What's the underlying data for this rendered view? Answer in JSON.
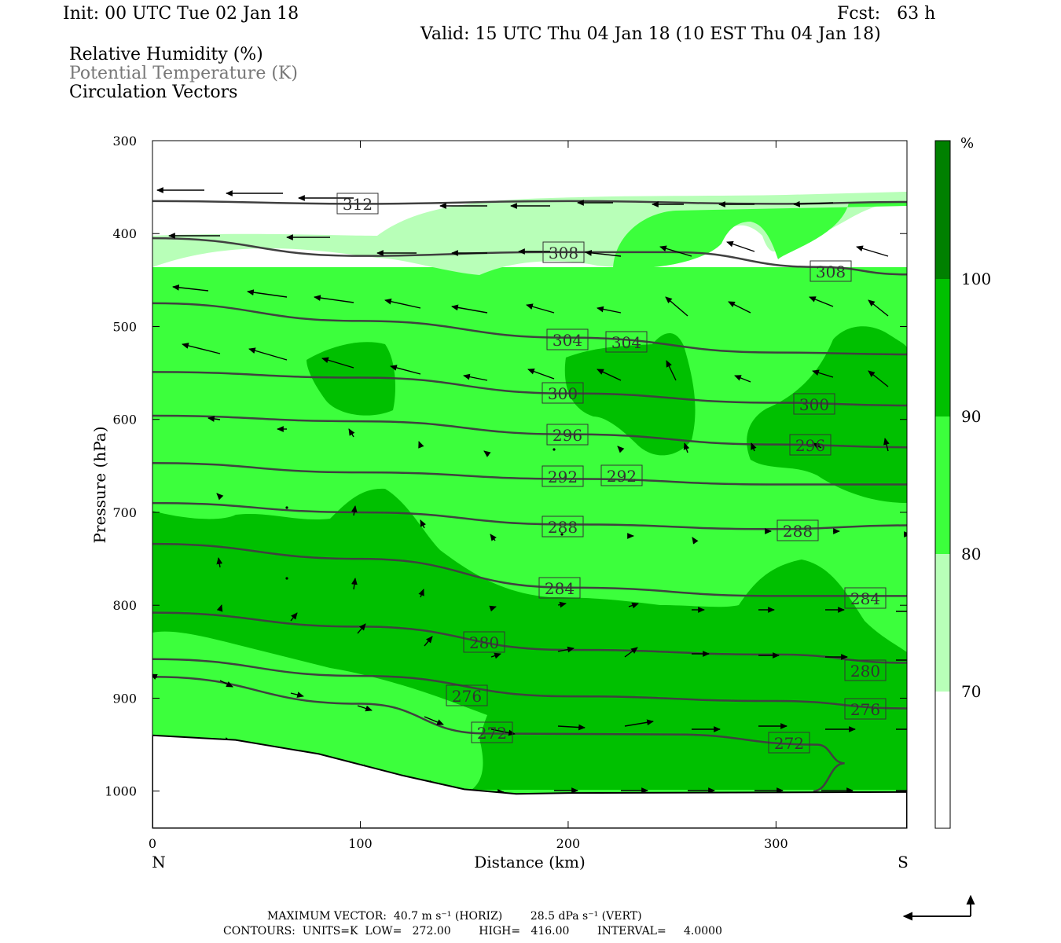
{
  "header": {
    "init": "Init: 00 UTC Tue 02 Jan 18",
    "fcst": "Fcst:   63 h",
    "valid": "Valid: 15 UTC Thu 04 Jan 18 (10 EST Thu 04 Jan 18)"
  },
  "legend": {
    "items": [
      "Relative Humidity (%)",
      "Potential Temperature (K)",
      "Circulation Vectors"
    ]
  },
  "footer": {
    "max_vector": "MAXIMUM VECTOR:  40.7 m s⁻¹ (HORIZ)        28.5 dPa s⁻¹ (VERT)",
    "contours": "CONTOURS:  UNITS=K  LOW=   272.00        HIGH=   416.00        INTERVAL=     4.0000"
  },
  "colors": {
    "rh_70_80": "#b8ffb8",
    "rh_80_90": "#3cff3c",
    "rh_90_100": "#00c000",
    "rh_100": "#008000",
    "theta_line": "#404040",
    "terrain": "#ffffff"
  },
  "chart_data": {
    "type": "cross-section",
    "xlabel": "Distance (km)",
    "ylabel": "Pressure (hPa)",
    "xlim": [
      0,
      363
    ],
    "ylim": [
      1040,
      300
    ],
    "x_ticks": [
      0,
      100,
      200,
      300
    ],
    "y_ticks": [
      300,
      400,
      500,
      600,
      700,
      800,
      900,
      1000
    ],
    "x_end_labels": {
      "left": "N",
      "right": "S"
    },
    "colorbar": {
      "unit": "%",
      "levels": [
        70,
        80,
        90,
        100
      ]
    },
    "theta_contours": [
      {
        "label": "312",
        "points": [
          [
            0,
            365
          ],
          [
            100,
            368
          ],
          [
            200,
            365
          ],
          [
            300,
            368
          ],
          [
            363,
            366
          ]
        ]
      },
      {
        "label": "308",
        "points": [
          [
            0,
            405
          ],
          [
            100,
            424
          ],
          [
            190,
            420
          ],
          [
            250,
            420
          ],
          [
            320,
            436
          ],
          [
            363,
            444
          ]
        ]
      },
      {
        "label": "304",
        "points": [
          [
            0,
            475
          ],
          [
            100,
            494
          ],
          [
            200,
            512
          ],
          [
            300,
            528
          ],
          [
            363,
            530
          ]
        ]
      },
      {
        "label": "300",
        "points": [
          [
            0,
            549
          ],
          [
            100,
            555
          ],
          [
            200,
            572
          ],
          [
            300,
            582
          ],
          [
            363,
            585
          ]
        ]
      },
      {
        "label": "296",
        "points": [
          [
            0,
            596
          ],
          [
            100,
            602
          ],
          [
            200,
            616
          ],
          [
            300,
            627
          ],
          [
            363,
            630
          ]
        ]
      },
      {
        "label": "292",
        "points": [
          [
            0,
            647
          ],
          [
            100,
            657
          ],
          [
            200,
            664
          ],
          [
            300,
            670
          ],
          [
            363,
            670
          ]
        ]
      },
      {
        "label": "288",
        "points": [
          [
            0,
            690
          ],
          [
            100,
            700
          ],
          [
            200,
            713
          ],
          [
            300,
            718
          ],
          [
            363,
            714
          ]
        ]
      },
      {
        "label": "284",
        "points": [
          [
            0,
            734
          ],
          [
            100,
            750
          ],
          [
            200,
            781
          ],
          [
            300,
            790
          ],
          [
            363,
            790
          ]
        ]
      },
      {
        "label": "280",
        "points": [
          [
            0,
            808
          ],
          [
            100,
            823
          ],
          [
            200,
            848
          ],
          [
            300,
            853
          ],
          [
            363,
            862
          ]
        ]
      },
      {
        "label": "276",
        "points": [
          [
            0,
            858
          ],
          [
            100,
            876
          ],
          [
            200,
            898
          ],
          [
            300,
            903
          ],
          [
            363,
            911
          ]
        ]
      },
      {
        "label": "272",
        "points": [
          [
            0,
            877
          ],
          [
            100,
            906
          ],
          [
            160,
            938
          ],
          [
            250,
            939
          ],
          [
            320,
            950
          ],
          [
            333,
            970
          ],
          [
            318,
            1000
          ]
        ]
      }
    ],
    "surface_pressure": [
      [
        0,
        940
      ],
      [
        40,
        945
      ],
      [
        80,
        960
      ],
      [
        120,
        983
      ],
      [
        150,
        998
      ],
      [
        175,
        1003
      ],
      [
        200,
        1002
      ],
      [
        363,
        1001
      ]
    ]
  }
}
